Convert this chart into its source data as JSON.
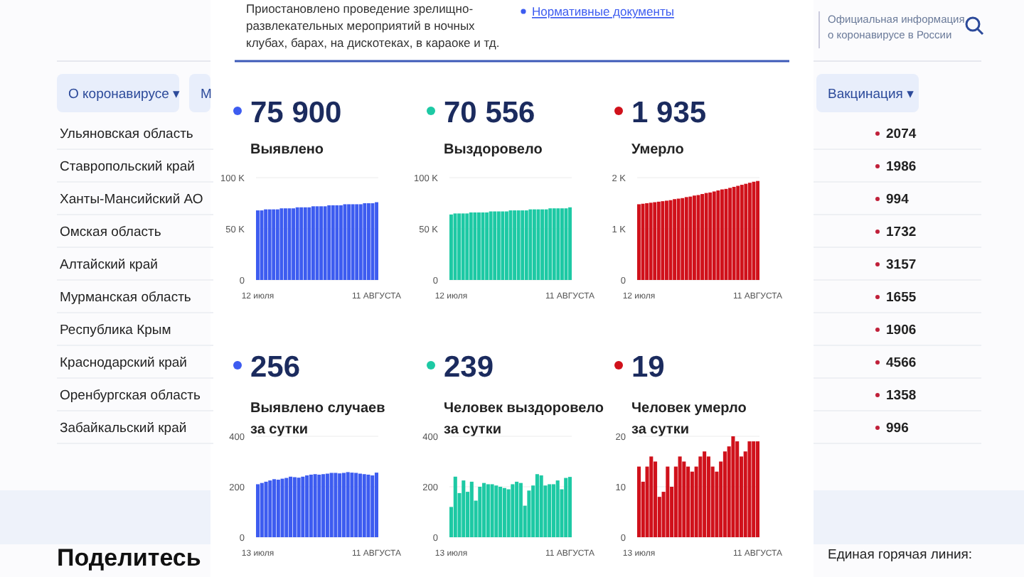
{
  "chart_data": [
    {
      "type": "bar",
      "grid": true,
      "title": "75 900",
      "subtitle": "Выявлено",
      "color": "#3d5cf0",
      "ylim": [
        0,
        100000
      ],
      "yticks": [
        {
          "value": 0,
          "label": "0"
        },
        {
          "value": 50000,
          "label": "50 K"
        },
        {
          "value": 100000,
          "label": "100 K"
        }
      ],
      "categories": [
        "12 июля",
        null,
        null,
        null,
        null,
        null,
        null,
        null,
        null,
        null,
        null,
        null,
        null,
        null,
        null,
        null,
        null,
        null,
        null,
        null,
        null,
        null,
        null,
        null,
        null,
        null,
        null,
        null,
        null,
        null,
        "11 АВГУСТА"
      ],
      "values": [
        68000,
        68000,
        69000,
        69000,
        69000,
        69000,
        70000,
        70000,
        70000,
        70000,
        71000,
        71000,
        71000,
        71000,
        72000,
        72000,
        72000,
        72000,
        73000,
        73000,
        73000,
        73000,
        74000,
        74000,
        74000,
        74000,
        74000,
        75000,
        75000,
        75000,
        76000
      ]
    },
    {
      "type": "bar",
      "grid": true,
      "title": "70 556",
      "subtitle": "Выздоровело",
      "color": "#1dc9a4",
      "ylim": [
        0,
        100000
      ],
      "yticks": [
        {
          "value": 0,
          "label": "0"
        },
        {
          "value": 50000,
          "label": "50 K"
        },
        {
          "value": 100000,
          "label": "100 K"
        }
      ],
      "categories": [
        "12 июля",
        null,
        null,
        null,
        null,
        null,
        null,
        null,
        null,
        null,
        null,
        null,
        null,
        null,
        null,
        null,
        null,
        null,
        null,
        null,
        null,
        null,
        null,
        null,
        null,
        null,
        null,
        null,
        null,
        null,
        "11 АВГУСТА"
      ],
      "values": [
        64000,
        65000,
        65000,
        65000,
        65000,
        66000,
        66000,
        66000,
        66000,
        66000,
        67000,
        67000,
        67000,
        67000,
        67000,
        68000,
        68000,
        68000,
        68000,
        68000,
        69000,
        69000,
        69000,
        69000,
        69000,
        70000,
        70000,
        70000,
        70000,
        70000,
        71000
      ]
    },
    {
      "type": "bar",
      "grid": true,
      "title": "1 935",
      "subtitle": "Умерло",
      "color": "#d0111b",
      "ylim": [
        0,
        2000
      ],
      "yticks": [
        {
          "value": 0,
          "label": "0"
        },
        {
          "value": 1000,
          "label": "1 K"
        },
        {
          "value": 2000,
          "label": "2 K"
        }
      ],
      "categories": [
        "12 июля",
        null,
        null,
        null,
        null,
        null,
        null,
        null,
        null,
        null,
        null,
        null,
        null,
        null,
        null,
        null,
        null,
        null,
        null,
        null,
        null,
        null,
        null,
        null,
        null,
        null,
        null,
        null,
        null,
        null,
        "11 АВГУСТА"
      ],
      "values": [
        1480,
        1490,
        1500,
        1510,
        1520,
        1530,
        1540,
        1550,
        1560,
        1580,
        1590,
        1600,
        1620,
        1630,
        1650,
        1660,
        1680,
        1700,
        1710,
        1730,
        1750,
        1770,
        1780,
        1800,
        1820,
        1840,
        1860,
        1880,
        1900,
        1920,
        1935
      ]
    },
    {
      "type": "bar",
      "grid": true,
      "title": "256",
      "subtitle": "Выявлено случаев\nза сутки",
      "color": "#3d5cf0",
      "ylim": [
        0,
        400
      ],
      "yticks": [
        0,
        200,
        400
      ],
      "categories": [
        "13 июля",
        null,
        null,
        null,
        null,
        null,
        null,
        null,
        null,
        null,
        null,
        null,
        null,
        null,
        null,
        null,
        null,
        null,
        null,
        null,
        null,
        null,
        null,
        null,
        null,
        null,
        null,
        null,
        null,
        "11 АВГУСТА"
      ],
      "values": [
        210,
        215,
        220,
        225,
        230,
        228,
        232,
        235,
        240,
        238,
        236,
        240,
        245,
        248,
        250,
        248,
        250,
        252,
        255,
        255,
        253,
        255,
        258,
        256,
        255,
        252,
        250,
        248,
        245,
        256
      ]
    },
    {
      "type": "bar",
      "grid": true,
      "title": "239",
      "subtitle": "Человек выздоровело\nза сутки",
      "color": "#1dc9a4",
      "ylim": [
        0,
        400
      ],
      "yticks": [
        0,
        200,
        400
      ],
      "categories": [
        "13 июля",
        null,
        null,
        null,
        null,
        null,
        null,
        null,
        null,
        null,
        null,
        null,
        null,
        null,
        null,
        null,
        null,
        null,
        null,
        null,
        null,
        null,
        null,
        null,
        null,
        null,
        null,
        null,
        null,
        "11 АВГУСТА"
      ],
      "values": [
        120,
        240,
        175,
        225,
        180,
        220,
        145,
        200,
        215,
        210,
        210,
        205,
        200,
        195,
        190,
        210,
        220,
        215,
        125,
        185,
        205,
        250,
        245,
        205,
        210,
        210,
        225,
        190,
        235,
        239
      ]
    },
    {
      "type": "bar",
      "grid": true,
      "title": "19",
      "subtitle": "Человек умерло\nза сутки",
      "color": "#d0111b",
      "ylim": [
        0,
        20
      ],
      "yticks": [
        0,
        10,
        20
      ],
      "categories": [
        "13 июля",
        null,
        null,
        null,
        null,
        null,
        null,
        null,
        null,
        null,
        null,
        null,
        null,
        null,
        null,
        null,
        null,
        null,
        null,
        null,
        null,
        null,
        null,
        null,
        null,
        null,
        null,
        null,
        null,
        "11 АВГУСТА"
      ],
      "values": [
        14,
        11,
        14,
        16,
        15,
        8,
        9,
        14,
        10,
        14,
        16,
        15,
        14,
        13,
        14,
        16,
        17,
        16,
        14,
        13,
        15,
        17,
        18,
        20,
        19,
        16,
        17,
        19,
        19,
        19
      ]
    },
    {
      "type": "other",
      "annotations": [
        "Официальная информация\nо коронавирусе в России",
        "О коронавирусе ▾",
        "М",
        "Вакцинация ▾",
        "Приостановлено проведение зрелищно-\nразвлекательных мероприятий в ночных\nклубах, барах, на дискотеках, в караоке и тд.",
        "Нормативные документы",
        "Поделитесь",
        "Единая горячая линия:",
        "Ульяновская область",
        "Ставропольский край",
        "Ханты-Мансийский АО",
        "Омская область",
        "Алтайский край",
        "Мурманская область",
        "Республика Крым",
        "Краснодарский край",
        "Оренбургская область",
        "Забайкальский край",
        "2074",
        "1986",
        "994",
        "1732",
        "3157",
        "1655",
        "1906",
        "4566",
        "1358",
        "996"
      ]
    }
  ]
}
